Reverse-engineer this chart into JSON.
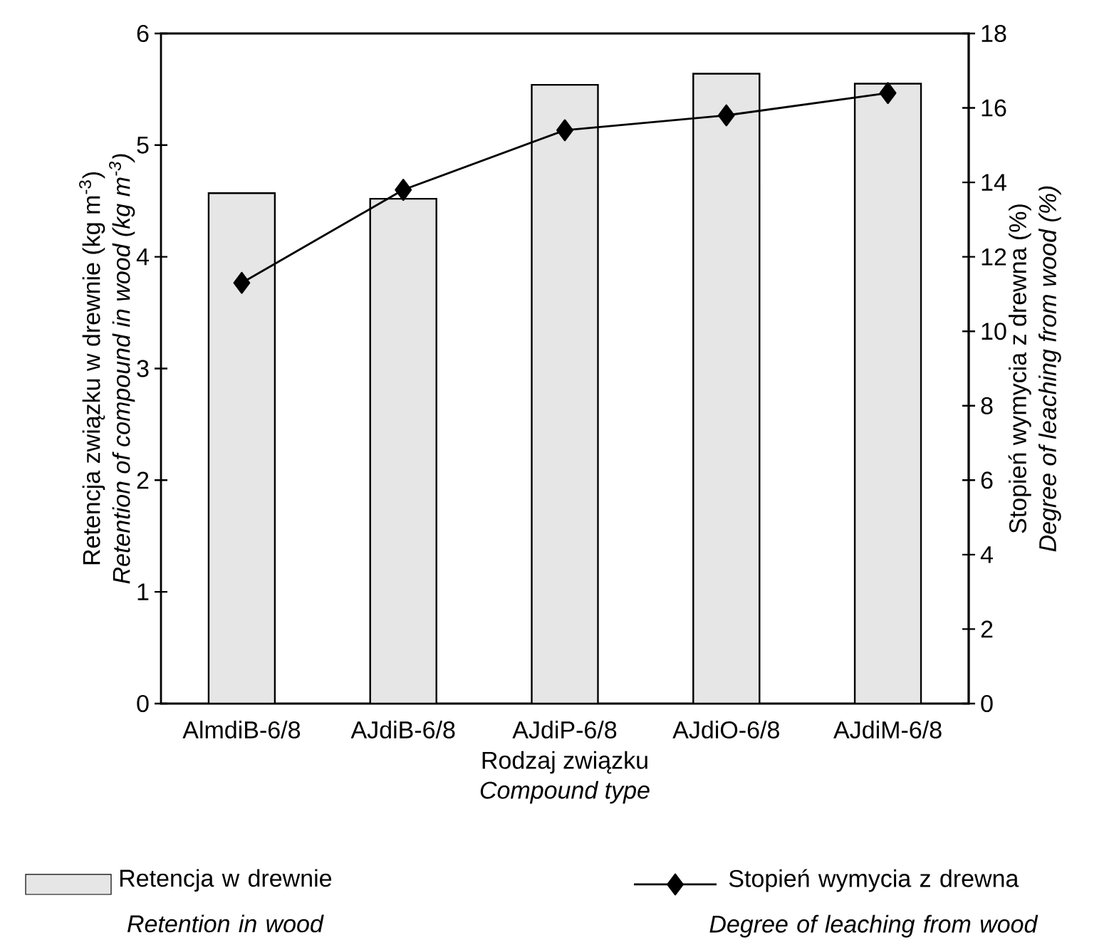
{
  "chart_data": {
    "type": "bar",
    "xlabel": "Rodzaj związku\n*Compound type*",
    "ylabel": "Retencja związku w drewnie (kg m$^{-3}$)\n*Retention of compound in wood (kg m$^{-3}$)*",
    "y2label": "Stopień wymycia z drewna (%)\n*Degree of leaching from wood (%)*",
    "categories": [
      "AlmdiB-6/8",
      "AJdiB-6/8",
      "AJdiP-6/8",
      "AJdiO-6/8",
      "AJdiM-6/8"
    ],
    "series": [
      {
        "name": "Retencja w drewnie\n*Retention in wood*",
        "color": "#e6e6e6",
        "values": [
          4.57,
          4.52,
          5.54,
          5.64,
          5.55
        ]
      },
      {
        "name": "Stopień wymycia z drewna\n*Degree of leaching from wood*",
        "type": "line",
        "axis": "y2",
        "color": "#000000",
        "marker": "diamond",
        "line_style": "solid",
        "values": [
          11.3,
          13.8,
          15.4,
          15.8,
          16.4
        ]
      }
    ],
    "ylim": [
      0,
      6
    ],
    "yticks": [
      0,
      1,
      2,
      3,
      4,
      5,
      6
    ],
    "y2lim": [
      0,
      18
    ],
    "y2ticks": [
      0,
      2,
      4,
      6,
      8,
      10,
      12,
      14,
      16,
      18
    ],
    "legend": "bottom"
  }
}
